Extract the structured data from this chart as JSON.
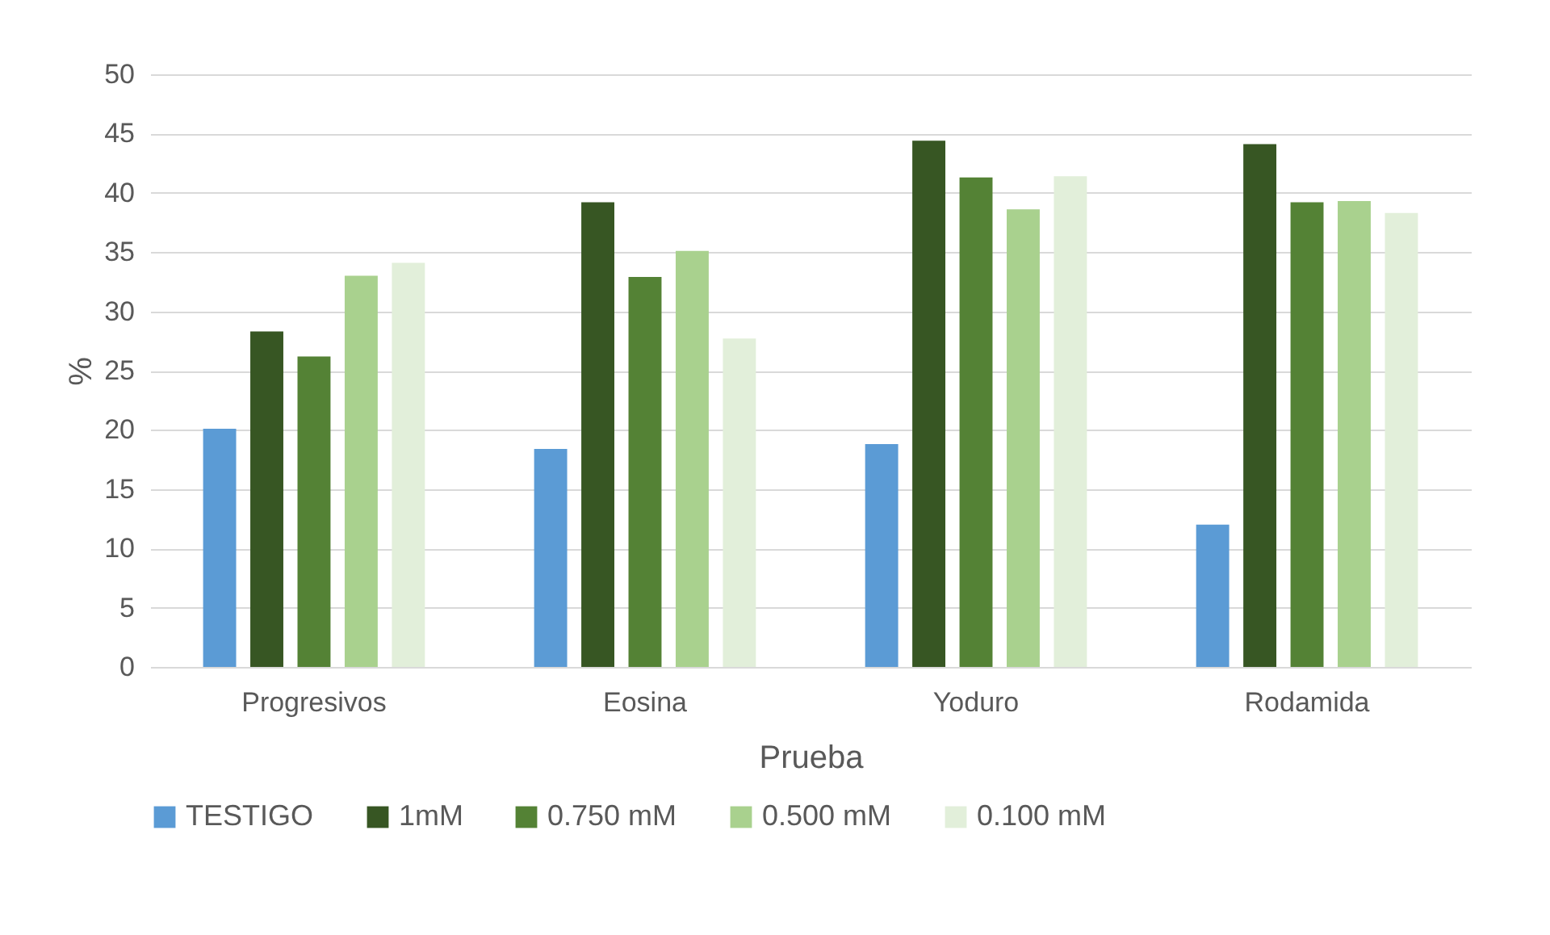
{
  "chart_data": {
    "type": "bar",
    "xlabel": "Prueba",
    "ylabel": "%",
    "categories": [
      "Progresivos",
      "Eosina",
      "Yoduro",
      "Rodamida"
    ],
    "series": [
      {
        "name": "TESTIGO",
        "color": "#5b9bd5",
        "values": [
          20.1,
          18.4,
          18.8,
          12.0
        ]
      },
      {
        "name": "1mM",
        "color": "#375623",
        "values": [
          28.3,
          39.2,
          44.4,
          44.1
        ]
      },
      {
        "name": "0.750 mM",
        "color": "#548235",
        "values": [
          26.2,
          32.9,
          41.3,
          39.2
        ]
      },
      {
        "name": "0.500 mM",
        "color": "#a9d18e",
        "values": [
          33.0,
          35.1,
          38.6,
          39.3
        ]
      },
      {
        "name": "0.100 mM",
        "color": "#e2efda",
        "values": [
          34.1,
          27.7,
          41.4,
          38.3
        ]
      }
    ],
    "ylim": [
      0,
      50
    ],
    "yticks": [
      0,
      5,
      10,
      15,
      20,
      25,
      30,
      35,
      40,
      45,
      50
    ],
    "grid": "y",
    "legend": "bottom"
  }
}
